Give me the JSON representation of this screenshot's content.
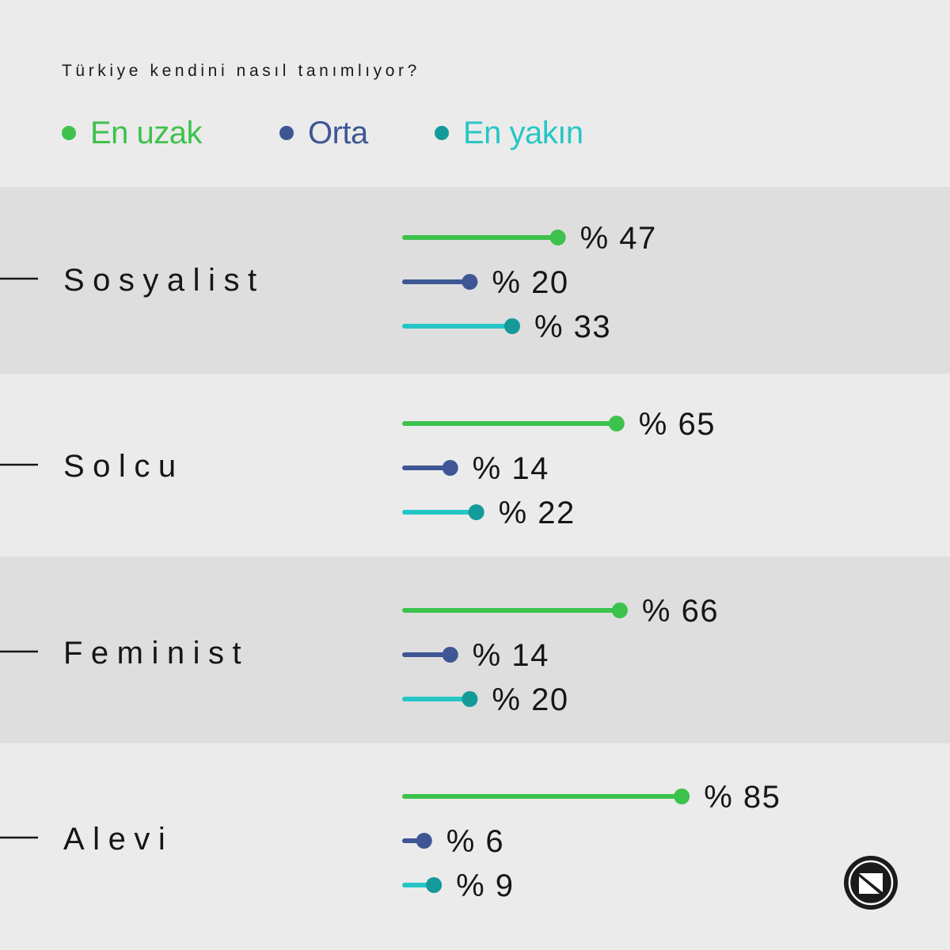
{
  "title": "Türkiye kendini nasıl tanımlıyor?",
  "legend": [
    {
      "label": "En uzak",
      "color": "#3dc24d"
    },
    {
      "label": "Orta",
      "color": "#3f5695"
    },
    {
      "label": "En yakın",
      "color": "#27c6c6"
    }
  ],
  "dot_colors": [
    "#3dc24d",
    "#3f5695",
    "#159a9a"
  ],
  "row_band_colors": [
    "#dedede",
    "#ebebeb"
  ],
  "logo": {
    "icon": "n-circle-logo-icon"
  },
  "chart_data": {
    "type": "bar",
    "title": "Türkiye kendini nasıl tanımlıyor?",
    "categories": [
      "Sosyalist",
      "Solcu",
      "Feminist",
      "Alevi"
    ],
    "series": [
      {
        "name": "En uzak",
        "values": [
          47,
          65,
          66,
          85
        ],
        "labels": [
          "% 47",
          "% 65",
          "% 66",
          "% 85"
        ]
      },
      {
        "name": "Orta",
        "values": [
          20,
          14,
          14,
          6
        ],
        "labels": [
          "% 20",
          "% 14",
          "% 14",
          "% 6"
        ]
      },
      {
        "name": "En yakın",
        "values": [
          33,
          22,
          20,
          9
        ],
        "labels": [
          "% 33",
          "% 22",
          "% 20",
          "% 9"
        ]
      }
    ],
    "xlim": [
      0,
      100
    ],
    "grid": false,
    "legend_position": "top-left"
  }
}
